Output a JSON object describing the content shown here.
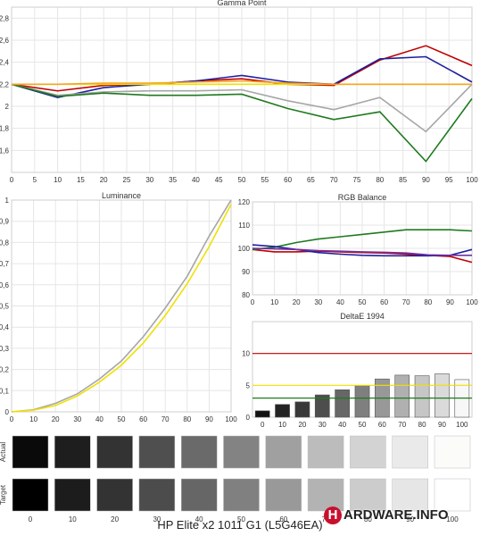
{
  "caption": "HP Elite x2 1011 G1 (L5G46EA)",
  "logo_text": "HARDWARE.INFO",
  "logo_letter": "H",
  "logo_rest": "ARDWARE.INFO",
  "chart_data": [
    {
      "type": "line",
      "title": "Gamma Point",
      "x": [
        0,
        10,
        20,
        30,
        40,
        50,
        60,
        70,
        80,
        90,
        100
      ],
      "x_ticks": [
        0,
        5,
        10,
        15,
        20,
        25,
        30,
        35,
        40,
        45,
        50,
        55,
        60,
        65,
        70,
        75,
        80,
        85,
        90,
        95,
        100
      ],
      "ylim": [
        1.4,
        2.9
      ],
      "y_ticks": [
        "1,6",
        "1,8",
        "2",
        "2,2",
        "2,4",
        "2,6",
        "2,8"
      ],
      "y_tick_values": [
        1.6,
        1.8,
        2.0,
        2.2,
        2.4,
        2.6,
        2.8
      ],
      "series": [
        {
          "color": "#c00000",
          "values": [
            2.2,
            2.14,
            2.19,
            2.2,
            2.23,
            2.25,
            2.2,
            2.19,
            2.42,
            2.55,
            2.37
          ]
        },
        {
          "color": "#1f1f9f",
          "values": [
            2.2,
            2.08,
            2.17,
            2.2,
            2.23,
            2.28,
            2.22,
            2.2,
            2.43,
            2.45,
            2.22
          ]
        },
        {
          "color": "#a6a6a6",
          "values": [
            2.2,
            2.1,
            2.13,
            2.14,
            2.14,
            2.15,
            2.05,
            1.97,
            2.08,
            1.77,
            2.2
          ]
        },
        {
          "color": "#1e7a1e",
          "values": [
            2.2,
            2.09,
            2.12,
            2.1,
            2.1,
            2.11,
            1.98,
            1.88,
            1.95,
            1.5,
            2.07
          ]
        },
        {
          "color": "#f0e000",
          "values": [
            2.2,
            2.2,
            2.2,
            2.2,
            2.2,
            2.2,
            2.2,
            2.2,
            2.2,
            2.2,
            2.2
          ]
        },
        {
          "color": "#f5a623",
          "values": [
            2.2,
            2.2,
            2.21,
            2.21,
            2.22,
            2.23,
            2.21,
            2.2,
            2.2,
            2.2,
            2.2
          ]
        }
      ]
    },
    {
      "type": "line",
      "title": "Luminance",
      "x": [
        0,
        10,
        20,
        30,
        40,
        50,
        60,
        70,
        80,
        90,
        100
      ],
      "ylim": [
        0,
        1
      ],
      "y_ticks": [
        "0",
        "0,1",
        "0,2",
        "0,3",
        "0,4",
        "0,5",
        "0,6",
        "0,7",
        "0,8",
        "0,9",
        "1"
      ],
      "y_tick_values": [
        0,
        0.1,
        0.2,
        0.3,
        0.4,
        0.5,
        0.6,
        0.7,
        0.8,
        0.9,
        1.0
      ],
      "series": [
        {
          "color": "#a6a6a6",
          "values": [
            0,
            0.01,
            0.04,
            0.085,
            0.155,
            0.24,
            0.355,
            0.49,
            0.64,
            0.83,
            1.0
          ]
        },
        {
          "color": "#f0e000",
          "values": [
            0,
            0.008,
            0.03,
            0.075,
            0.14,
            0.22,
            0.325,
            0.455,
            0.605,
            0.78,
            0.98
          ]
        }
      ]
    },
    {
      "type": "line",
      "title": "RGB Balance",
      "x": [
        0,
        10,
        20,
        30,
        40,
        50,
        60,
        70,
        80,
        90,
        100
      ],
      "ylim": [
        80,
        120
      ],
      "y_ticks": [
        "80",
        "90",
        "100",
        "110",
        "120"
      ],
      "y_tick_values": [
        80,
        90,
        100,
        110,
        120
      ],
      "series": [
        {
          "color": "#c00000",
          "values": [
            99.5,
            98.5,
            98.5,
            98.8,
            98.5,
            98.2,
            98,
            97.5,
            97,
            96.5,
            94
          ]
        },
        {
          "color": "#1e7a1e",
          "values": [
            99.5,
            100.5,
            102.5,
            104,
            105,
            106,
            107,
            108,
            108,
            108,
            107.5
          ]
        },
        {
          "color": "#1f1f9f",
          "values": [
            101.5,
            100.8,
            99.5,
            98.2,
            97.5,
            97,
            96.8,
            96.8,
            96.8,
            97,
            99.5
          ]
        },
        {
          "color": "#7030a0",
          "values": [
            100,
            99.8,
            99.5,
            99,
            98.8,
            98.5,
            98.3,
            98,
            97.2,
            97,
            97
          ]
        }
      ]
    },
    {
      "type": "bar",
      "title": "DeltaE 1994",
      "categories": [
        "0",
        "10",
        "20",
        "30",
        "40",
        "50",
        "60",
        "70",
        "80",
        "90",
        "100"
      ],
      "values": [
        1.0,
        2.0,
        2.4,
        3.5,
        4.3,
        5.0,
        6.0,
        6.6,
        6.5,
        6.8,
        5.9
      ],
      "bar_colors": [
        "#111111",
        "#232323",
        "#383838",
        "#4d4d4d",
        "#676767",
        "#7f7f7f",
        "#989898",
        "#b0b0b0",
        "#c6c6c6",
        "#dadada",
        "#f7f7f7"
      ],
      "ylim": [
        0,
        15
      ],
      "y_ticks": [
        "0",
        "5",
        "10"
      ],
      "y_tick_values": [
        0,
        5,
        10
      ],
      "reference_lines": [
        {
          "value": 10,
          "color": "#c00000"
        },
        {
          "value": 5,
          "color": "#f0e000"
        },
        {
          "value": 3,
          "color": "#1e7a1e"
        }
      ]
    }
  ],
  "swatches": {
    "row_labels": [
      "Actual",
      "Target"
    ],
    "labels": [
      "0",
      "10",
      "20",
      "30",
      "40",
      "50",
      "60",
      "70",
      "80",
      "90",
      "100"
    ],
    "actual": [
      "#0a0a0a",
      "#1e1e1e",
      "#333333",
      "#4f4f4f",
      "#6a6a6a",
      "#838383",
      "#a0a0a0",
      "#bcbcbc",
      "#d3d3d3",
      "#eaeaea",
      "#fbfcf9"
    ],
    "target": [
      "#000000",
      "#1c1c1c",
      "#333333",
      "#4c4c4c",
      "#666666",
      "#808080",
      "#999999",
      "#b3b3b3",
      "#cccccc",
      "#e6e6e6",
      "#ffffff"
    ]
  }
}
